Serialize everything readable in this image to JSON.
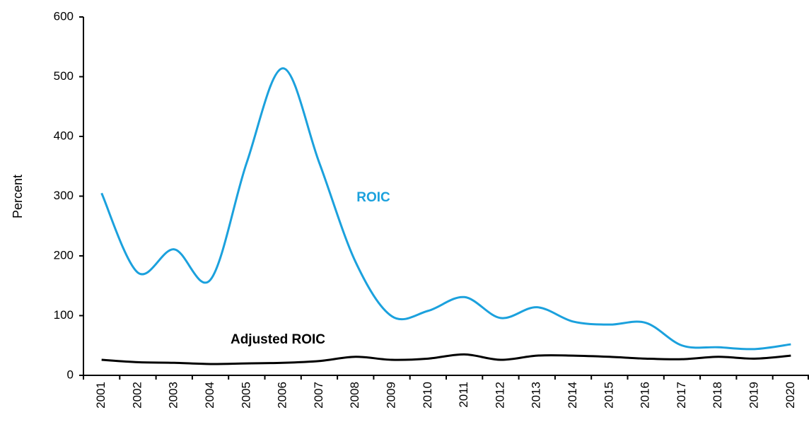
{
  "chart_data": {
    "type": "line",
    "y_label": "Percent",
    "categories": [
      "2001",
      "2002",
      "2003",
      "2004",
      "2005",
      "2006",
      "2007",
      "2008",
      "2009",
      "2010",
      "2011",
      "2012",
      "2013",
      "2014",
      "2015",
      "2016",
      "2017",
      "2018",
      "2019",
      "2020"
    ],
    "series": [
      {
        "name": "ROIC",
        "color": "#1ba1dd",
        "values": [
          305,
          172,
          211,
          160,
          356,
          514,
          356,
          190,
          99,
          108,
          131,
          96,
          114,
          90,
          85,
          88,
          50,
          47,
          44,
          52
        ]
      },
      {
        "name": "Adjusted ROIC",
        "color": "#000000",
        "values": [
          26,
          22,
          21,
          19,
          20,
          21,
          24,
          31,
          26,
          28,
          35,
          26,
          33,
          33,
          31,
          28,
          27,
          31,
          28,
          33
        ]
      }
    ],
    "ylim": [
      0,
      600
    ],
    "yticks": [
      0,
      100,
      200,
      300,
      400,
      500,
      600
    ]
  }
}
